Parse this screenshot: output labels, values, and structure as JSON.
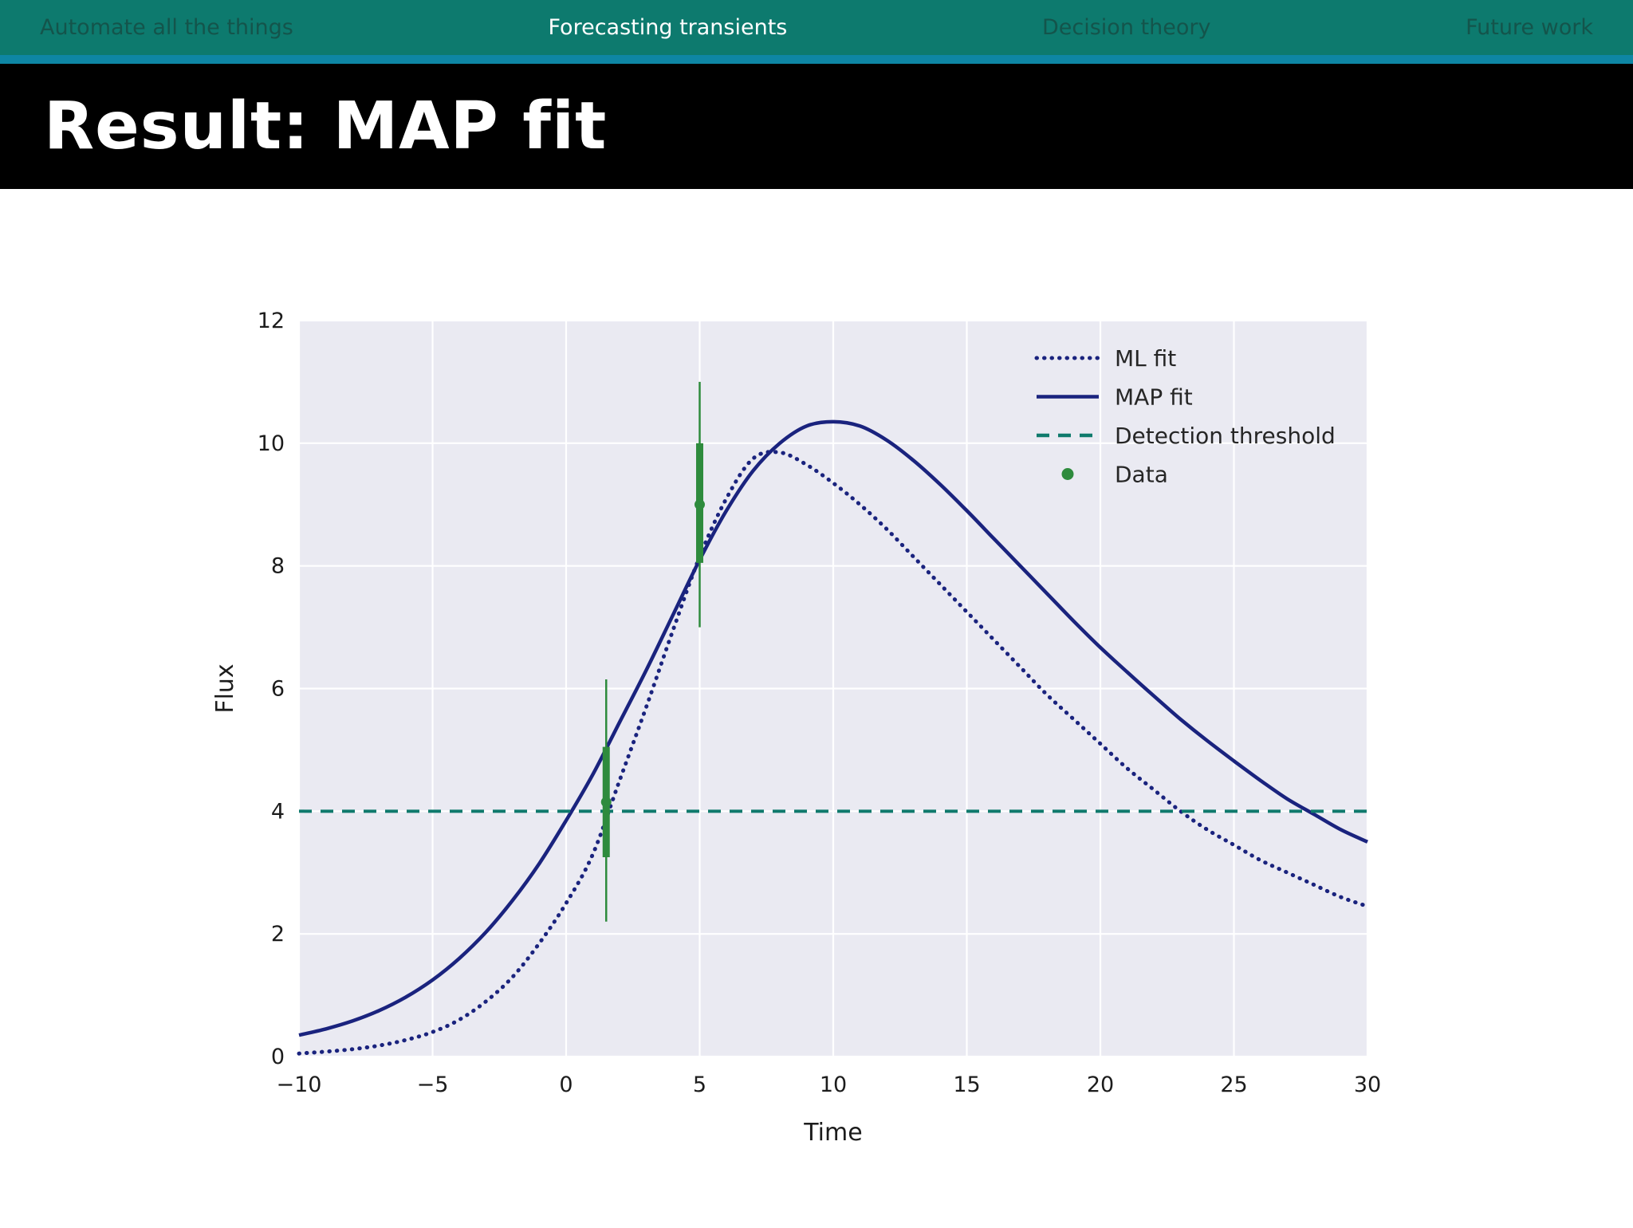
{
  "nav": {
    "items": [
      {
        "label": "Automate all the things",
        "active": false
      },
      {
        "label": "Forecasting transients",
        "active": true
      },
      {
        "label": "Decision theory",
        "active": false
      },
      {
        "label": "Future work",
        "active": false
      }
    ]
  },
  "slide": {
    "title": "Result: MAP fit"
  },
  "colors": {
    "nav_bg": "#0d7a6e",
    "nav_strip": "#0e86a4",
    "nav_active_text": "#ffffff",
    "nav_inactive_text": "#14544b",
    "title_bar_bg": "#000000",
    "title_text": "#ffffff",
    "plot_bg": "#eaeaf2",
    "grid": "#ffffff",
    "navy": "#1a237e",
    "teal": "#0f7a6d",
    "green": "#2e8b3d",
    "tick_text": "#1c1c1c"
  },
  "chart_data": {
    "type": "line",
    "title": "",
    "xlabel": "Time",
    "ylabel": "Flux",
    "xlim": [
      -10,
      30
    ],
    "ylim": [
      0,
      12
    ],
    "xticks": [
      -10,
      -5,
      0,
      5,
      10,
      15,
      20,
      25,
      30
    ],
    "yticks": [
      0,
      2,
      4,
      6,
      8,
      10,
      12
    ],
    "grid": true,
    "legend_position": "upper right",
    "x": [
      -10,
      -9,
      -8,
      -7,
      -6,
      -5,
      -4,
      -3,
      -2,
      -1,
      0,
      1,
      2,
      3,
      4,
      5,
      6,
      7,
      8,
      9,
      10,
      11,
      12,
      13,
      14,
      15,
      16,
      17,
      18,
      19,
      20,
      21,
      22,
      23,
      24,
      25,
      26,
      27,
      28,
      29,
      30
    ],
    "series": [
      {
        "name": "ML fit",
        "style": "dotted",
        "color": "#1a237e",
        "y": [
          0.05,
          0.08,
          0.12,
          0.18,
          0.27,
          0.4,
          0.6,
          0.9,
          1.3,
          1.85,
          2.5,
          3.3,
          4.5,
          5.7,
          6.95,
          8.15,
          9.1,
          9.75,
          9.85,
          9.65,
          9.35,
          9.0,
          8.6,
          8.15,
          7.7,
          7.25,
          6.8,
          6.35,
          5.9,
          5.5,
          5.1,
          4.7,
          4.35,
          4.0,
          3.7,
          3.45,
          3.2,
          3.0,
          2.8,
          2.6,
          2.45
        ]
      },
      {
        "name": "MAP fit",
        "style": "solid",
        "color": "#1a237e",
        "y": [
          0.35,
          0.45,
          0.58,
          0.75,
          0.97,
          1.25,
          1.6,
          2.03,
          2.55,
          3.15,
          3.85,
          4.6,
          5.45,
          6.3,
          7.2,
          8.1,
          8.9,
          9.55,
          10.0,
          10.28,
          10.35,
          10.28,
          10.05,
          9.72,
          9.33,
          8.9,
          8.45,
          8.0,
          7.55,
          7.1,
          6.67,
          6.27,
          5.88,
          5.5,
          5.15,
          4.82,
          4.5,
          4.2,
          3.95,
          3.7,
          3.5
        ]
      },
      {
        "name": "Detection threshold",
        "style": "dashed",
        "color": "#0f7a6d",
        "y_const": 4
      },
      {
        "name": "Data",
        "style": "points",
        "color": "#2e8b3d",
        "points": [
          {
            "x": 1.5,
            "y": 4.15,
            "err_outer": [
              2.2,
              6.15
            ],
            "err_inner": [
              3.25,
              5.05
            ]
          },
          {
            "x": 5.0,
            "y": 9.0,
            "err_outer": [
              7.0,
              11.0
            ],
            "err_inner": [
              8.05,
              10.0
            ]
          }
        ]
      }
    ]
  }
}
